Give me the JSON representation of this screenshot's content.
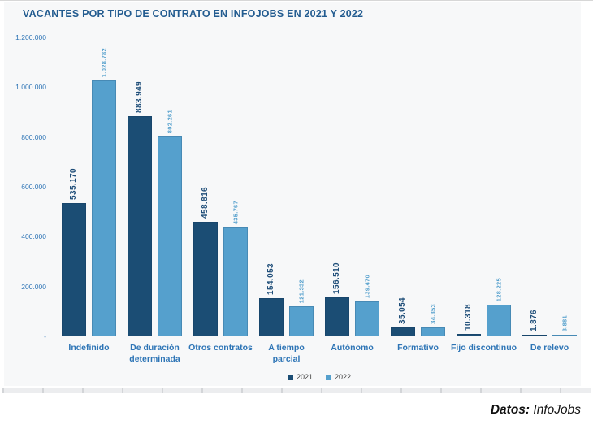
{
  "chart": {
    "title": "VACANTES POR TIPO DE CONTRATO EN INFOJOBS EN 2021 Y 2022"
  },
  "footer": {
    "label": "Datos:",
    "source": " InfoJobs"
  },
  "colors": {
    "series_2021": "#1B4D74",
    "series_2022": "#55A0CD",
    "axis_text": "#2E75B6",
    "title_text": "#235C90",
    "panel_background": "#F7F8F9"
  },
  "chart_data": {
    "type": "bar",
    "title": "VACANTES POR TIPO DE CONTRATO EN INFOJOBS EN 2021 Y 2022",
    "xlabel": "",
    "ylabel": "",
    "grid": false,
    "legend_position": "bottom",
    "bar_value_labels_rotated": true,
    "ylim": [
      0,
      1200000
    ],
    "ytick_labels": [
      "1.200.000",
      "1.000.000",
      "800.000",
      "600.000",
      "400.000",
      "200.000",
      "-"
    ],
    "categories": [
      "Indefinido",
      "De duración determinada",
      "Otros contratos",
      "A tiempo parcial",
      "Autónomo",
      "Formativo",
      "Fijo discontinuo",
      "De relevo"
    ],
    "category_lines": [
      [
        "Indefinido"
      ],
      [
        "De duración",
        "determinada"
      ],
      [
        "Otros contratos"
      ],
      [
        "A tiempo",
        "parcial"
      ],
      [
        "Autónomo"
      ],
      [
        "Formativo"
      ],
      [
        "Fijo discontinuo"
      ],
      [
        "De relevo"
      ]
    ],
    "series": [
      {
        "name": "2021",
        "color": "#1B4D74",
        "label_color": "#1F4E79",
        "values": [
          535170,
          883949,
          458816,
          154053,
          156510,
          35054,
          10318,
          1876
        ],
        "labels": [
          "535.170",
          "883.949",
          "458.816",
          "154.053",
          "156.510",
          "35.054",
          "10.318",
          "1.876"
        ]
      },
      {
        "name": "2022",
        "color": "#55A0CD",
        "label_color": "#55A0CD",
        "values": [
          1028782,
          802261,
          435767,
          121332,
          139470,
          34353,
          128225,
          3881
        ],
        "labels": [
          "1.028.782",
          "802.261",
          "435.767",
          "121.332",
          "139.470",
          "34.353",
          "128.225",
          "3.881"
        ]
      }
    ]
  }
}
